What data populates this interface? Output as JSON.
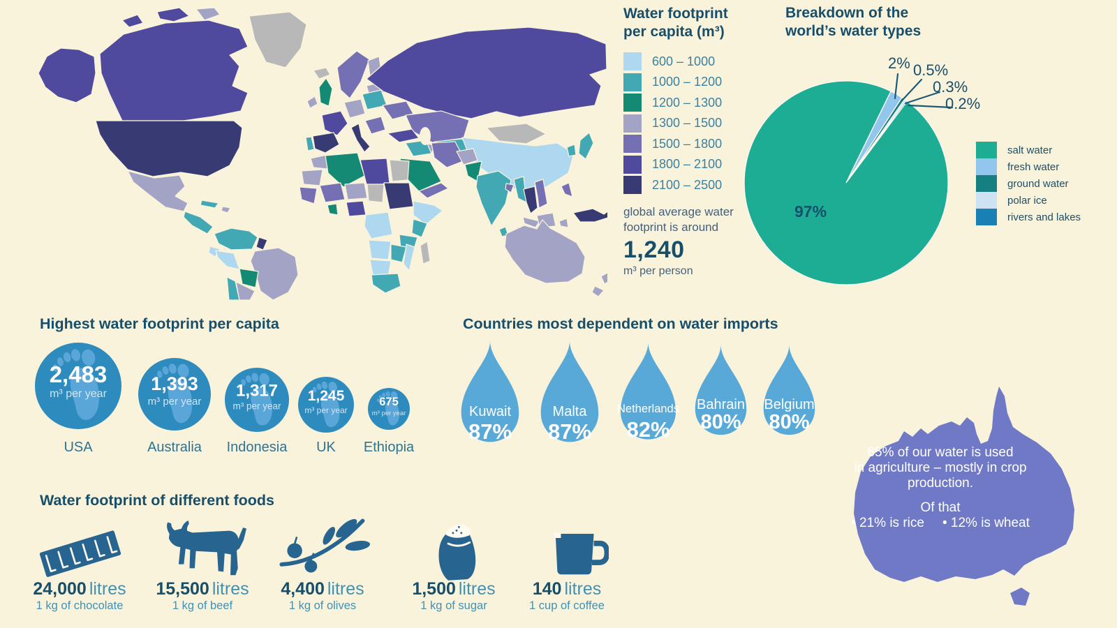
{
  "palette": {
    "page_background": "#faf3dc",
    "heading_ink": "#174f6b",
    "body_teal": "#3a81a0",
    "note_slate": "#44607a",
    "circle_blue": "#2e8bbd",
    "foot_blue": "#5ea8da",
    "drop_blue": "#58a9d7",
    "food_blue": "#27648f",
    "australia_purple": "#6f79c5",
    "leader_line": "#1b5a7a",
    "map_nodata": "#b8b8b8"
  },
  "map_legend": {
    "title_l1": "Water footprint",
    "title_l2": "per capita (m³)",
    "avg_l1": "global average water",
    "avg_l2": "footprint is around",
    "avg_value": "1,240",
    "avg_unit": "m³ per person"
  },
  "pie": {
    "title_l1": "Breakdown of the",
    "title_l2": "world’s water types",
    "callouts": [
      "2%",
      "0.5%",
      "0.3%",
      "0.2%"
    ],
    "big_label": "97%"
  },
  "footprints": {
    "heading": "Highest water footprint per capita",
    "unit": "m³ per year",
    "items": [
      {
        "country": "USA",
        "value": "2,483"
      },
      {
        "country": "Australia",
        "value": "1,393"
      },
      {
        "country": "Indonesia",
        "value": "1,317"
      },
      {
        "country": "UK",
        "value": "1,245"
      },
      {
        "country": "Ethiopia",
        "value": "675"
      }
    ]
  },
  "imports": {
    "heading": "Countries most dependent on water imports",
    "items": [
      {
        "country": "Kuwait",
        "pct": "87%"
      },
      {
        "country": "Malta",
        "pct": "87%"
      },
      {
        "country": "Netherlands",
        "pct": "82%"
      },
      {
        "country": "Bahrain",
        "pct": "80%"
      },
      {
        "country": "Belgium",
        "pct": "80%"
      }
    ]
  },
  "australia": {
    "line1": "65% of our water is used",
    "line2": "in agriculture – mostly in crop",
    "line3": "production.",
    "line4": "Of that",
    "bullet1": "• 21% is rice",
    "bullet2": "• 12% is wheat"
  },
  "foods": {
    "heading": "Water footprint of different foods",
    "unit": "litres",
    "items": [
      {
        "value": "24,000",
        "caption": "1 kg of chocolate",
        "icon": "chocolate-bar-icon"
      },
      {
        "value": "15,500",
        "caption": "1 kg of beef",
        "icon": "cow-icon"
      },
      {
        "value": "4,400",
        "caption": "1 kg of olives",
        "icon": "olive-branch-icon"
      },
      {
        "value": "1,500",
        "caption": "1 kg of sugar",
        "icon": "sugar-bag-icon"
      },
      {
        "value": "140",
        "caption": "1 cup of coffee",
        "icon": "coffee-mug-icon"
      }
    ]
  },
  "chart_data": [
    {
      "type": "heatmap",
      "subtype": "choropleth_world_map",
      "title": "Water footprint per capita (m³)",
      "legend_ranges": [
        "600 – 1000",
        "1000 – 1200",
        "1200 – 1300",
        "1300 – 1500",
        "1500 – 1800",
        "1800 – 2100",
        "2100 – 2500"
      ],
      "legend_colors": [
        "#aed7f0",
        "#41a8b4",
        "#148a74",
        "#a3a3c6",
        "#7570b3",
        "#504a9e",
        "#383a74"
      ],
      "global_average": 1240,
      "note": "global average water footprint is around 1,240 m³ per person"
    },
    {
      "type": "pie",
      "title": "Breakdown of the world’s water types",
      "labels": [
        "salt water",
        "fresh water",
        "ground water",
        "polar ice",
        "rivers and lakes"
      ],
      "values": [
        97,
        2,
        0.5,
        0.3,
        0.2
      ],
      "colors": [
        "#1dac94",
        "#93c6ed",
        "#157f82",
        "#cfe2f3",
        "#1880b4"
      ],
      "unit": "%",
      "legend_position": "right"
    },
    {
      "type": "bar",
      "subtype": "proportional_circles",
      "title": "Highest water footprint per capita",
      "categories": [
        "USA",
        "Australia",
        "Indonesia",
        "UK",
        "Ethiopia"
      ],
      "values": [
        2483,
        1393,
        1317,
        1245,
        675
      ],
      "unit": "m³ per year"
    },
    {
      "type": "bar",
      "subtype": "proportional_drops",
      "title": "Countries most dependent on water imports",
      "categories": [
        "Kuwait",
        "Malta",
        "Netherlands",
        "Bahrain",
        "Belgium"
      ],
      "values": [
        87,
        87,
        82,
        80,
        80
      ],
      "unit": "% dependent on water imports"
    },
    {
      "type": "bar",
      "subtype": "pictogram",
      "title": "Water footprint of different foods",
      "categories": [
        "1 kg of chocolate",
        "1 kg of beef",
        "1 kg of olives",
        "1 kg of sugar",
        "1 cup of coffee"
      ],
      "values": [
        24000,
        15500,
        4400,
        1500,
        140
      ],
      "unit": "litres"
    }
  ]
}
